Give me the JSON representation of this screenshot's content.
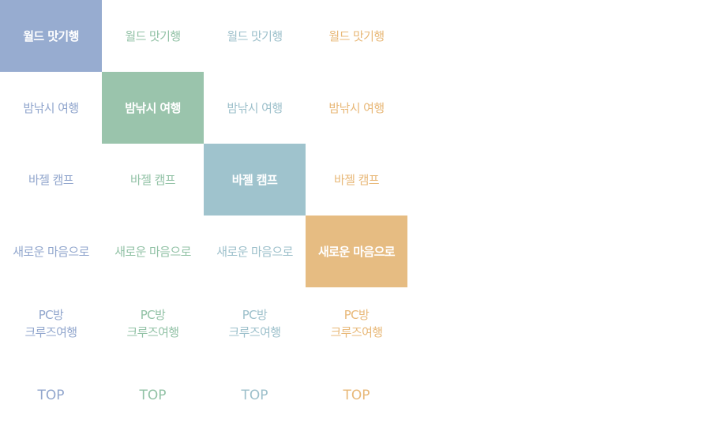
{
  "columns": [
    {
      "theme": "blue",
      "accent": "#97acd0",
      "items": [
        {
          "label": "월드 맛기행",
          "active": true
        },
        {
          "label": "밤낚시 여행",
          "active": false
        },
        {
          "label": "바젤 캠프",
          "active": false
        },
        {
          "label": "새로운 마음으로",
          "active": false
        },
        {
          "line1": "PC방",
          "line2": "크루즈여행",
          "active": false
        },
        {
          "label": "TOP",
          "active": false
        }
      ]
    },
    {
      "theme": "green",
      "accent": "#9ac4ac",
      "items": [
        {
          "label": "월드 맛기행",
          "active": false
        },
        {
          "label": "밤낚시 여행",
          "active": true
        },
        {
          "label": "바젤 캠프",
          "active": false
        },
        {
          "label": "새로운 마음으로",
          "active": false
        },
        {
          "line1": "PC방",
          "line2": "크루즈여행",
          "active": false
        },
        {
          "label": "TOP",
          "active": false
        }
      ]
    },
    {
      "theme": "teal",
      "accent": "#9fc3cd",
      "items": [
        {
          "label": "월드 맛기행",
          "active": false
        },
        {
          "label": "밤낚시 여행",
          "active": false
        },
        {
          "label": "바젤 캠프",
          "active": true
        },
        {
          "label": "새로운 마음으로",
          "active": false
        },
        {
          "line1": "PC방",
          "line2": "크루즈여행",
          "active": false
        },
        {
          "label": "TOP",
          "active": false
        }
      ]
    },
    {
      "theme": "orange",
      "accent": "#e6bc82",
      "items": [
        {
          "label": "월드 맛기행",
          "active": false
        },
        {
          "label": "밤낚시 여행",
          "active": false
        },
        {
          "label": "바젤 캠프",
          "active": false
        },
        {
          "label": "새로운 마음으로",
          "active": true
        },
        {
          "line1": "PC방",
          "line2": "크루즈여행",
          "active": false
        },
        {
          "label": "TOP",
          "active": false
        }
      ]
    }
  ]
}
